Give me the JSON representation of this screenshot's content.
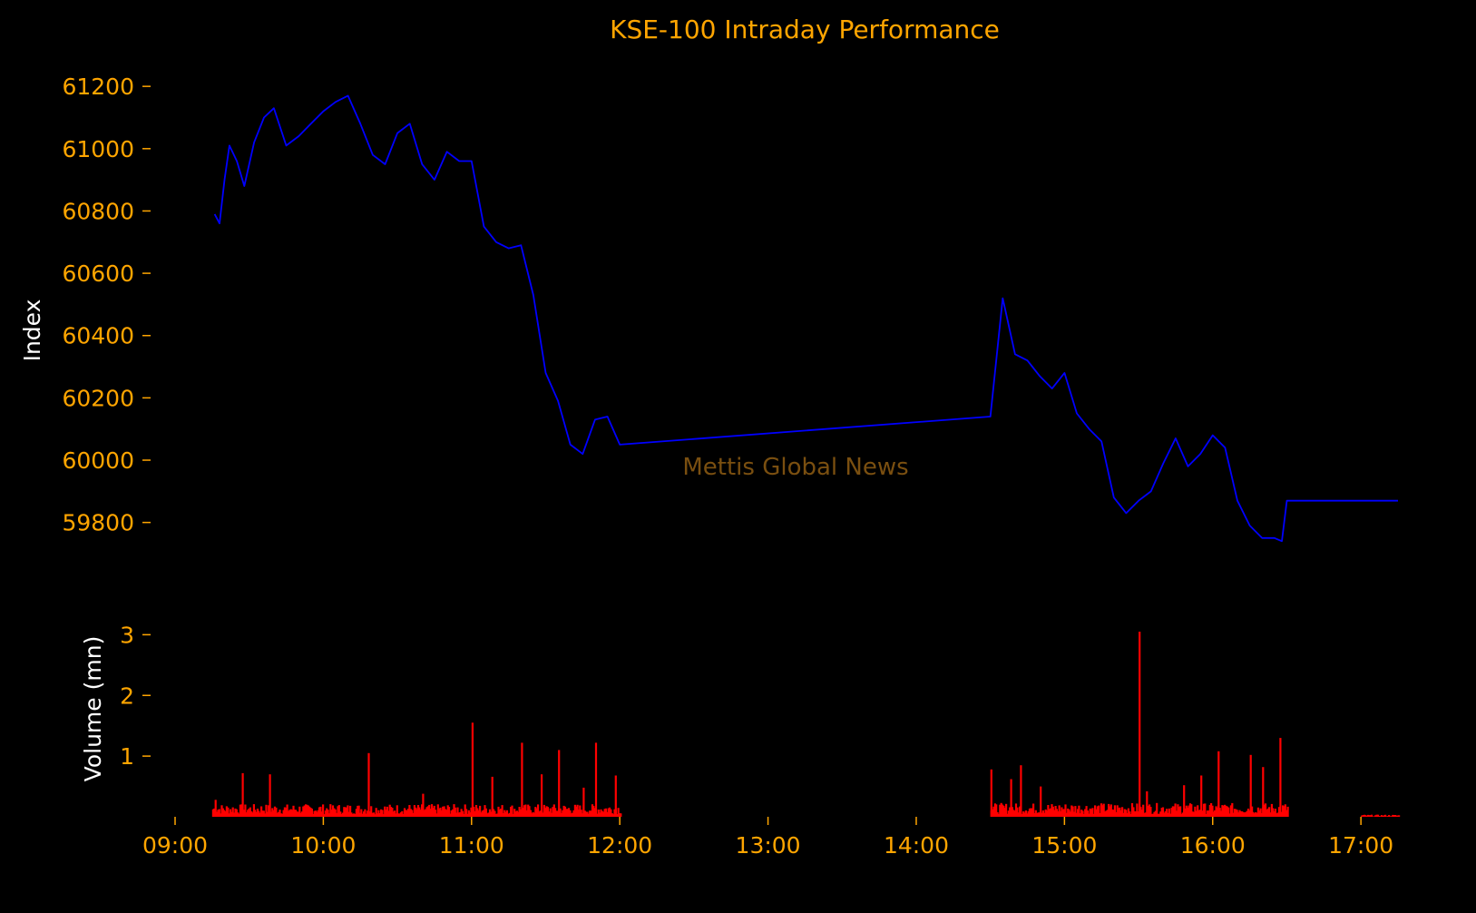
{
  "chart_data": {
    "type": "line",
    "title": "KSE-100 Intraday Performance",
    "watermark": "Mettis Global News",
    "colors": {
      "background": "#000000",
      "text": "#FFA500",
      "axis_label": "#FFFFFF",
      "price_line": "#0000FF",
      "volume_bars": "#FF0000",
      "watermark": "#7a4f10"
    },
    "x_axis": {
      "type": "time",
      "range": [
        "09:00",
        "17:15"
      ],
      "ticks": [
        "09:00",
        "10:00",
        "11:00",
        "12:00",
        "13:00",
        "14:00",
        "15:00",
        "16:00",
        "17:00"
      ]
    },
    "price_panel": {
      "ylabel": "Index",
      "ylim": [
        59700,
        61250
      ],
      "yticks": [
        "61200",
        "61000",
        "60800",
        "60600",
        "60400",
        "60200",
        "60000",
        "59800"
      ],
      "ytick_values": [
        61200,
        61000,
        60800,
        60600,
        60400,
        60200,
        60000,
        59800
      ],
      "series": [
        {
          "x": [
            "09:16",
            "09:18",
            "09:20",
            "09:22",
            "09:25",
            "09:28",
            "09:32",
            "09:36",
            "09:40",
            "09:45",
            "09:50",
            "09:55",
            "10:00",
            "10:05",
            "10:10",
            "10:15",
            "10:20",
            "10:25",
            "10:30",
            "10:35",
            "10:40",
            "10:45",
            "10:50",
            "10:55",
            "11:00",
            "11:05",
            "11:10",
            "11:15",
            "11:20",
            "11:25",
            "11:30",
            "11:35",
            "11:40",
            "11:45",
            "11:50",
            "11:55",
            "12:00",
            "14:30",
            "14:35",
            "14:40",
            "14:45",
            "14:50",
            "14:55",
            "15:00",
            "15:05",
            "15:10",
            "15:15",
            "15:20",
            "15:25",
            "15:30",
            "15:35",
            "15:40",
            "15:45",
            "15:50",
            "15:55",
            "16:00",
            "16:05",
            "16:10",
            "16:15",
            "16:20",
            "16:25",
            "16:28",
            "16:30",
            "17:15"
          ],
          "y": [
            60790,
            60760,
            60900,
            61010,
            60960,
            60880,
            61020,
            61100,
            61130,
            61010,
            61040,
            61080,
            61120,
            61150,
            61170,
            61080,
            60980,
            60950,
            61050,
            61080,
            60950,
            60900,
            60990,
            60960,
            60960,
            60750,
            60700,
            60680,
            60690,
            60530,
            60280,
            60190,
            60050,
            60020,
            60130,
            60140,
            60050,
            60140,
            60520,
            60340,
            60320,
            60270,
            60230,
            60280,
            60150,
            60100,
            60060,
            59880,
            59830,
            59870,
            59900,
            59990,
            60070,
            59980,
            60020,
            60080,
            60040,
            59870,
            59790,
            59750,
            59750,
            59740,
            59870,
            59870
          ]
        }
      ]
    },
    "volume_panel": {
      "ylabel": "Volume (mn)",
      "ylim": [
        0,
        3.2
      ],
      "yticks": [
        "3",
        "2",
        "1"
      ],
      "ytick_values": [
        3,
        2,
        1
      ],
      "spikes": [
        {
          "x": "09:16",
          "v": 0.28
        },
        {
          "x": "09:27",
          "v": 0.72
        },
        {
          "x": "09:38",
          "v": 0.7
        },
        {
          "x": "10:18",
          "v": 1.05
        },
        {
          "x": "10:40",
          "v": 0.38
        },
        {
          "x": "11:00",
          "v": 1.55
        },
        {
          "x": "11:08",
          "v": 0.66
        },
        {
          "x": "11:20",
          "v": 1.22
        },
        {
          "x": "11:28",
          "v": 0.7
        },
        {
          "x": "11:35",
          "v": 1.1
        },
        {
          "x": "11:45",
          "v": 0.48
        },
        {
          "x": "11:50",
          "v": 1.22
        },
        {
          "x": "11:58",
          "v": 0.68
        },
        {
          "x": "14:30",
          "v": 0.78
        },
        {
          "x": "14:38",
          "v": 0.62
        },
        {
          "x": "14:42",
          "v": 0.85
        },
        {
          "x": "14:50",
          "v": 0.5
        },
        {
          "x": "15:30",
          "v": 3.05
        },
        {
          "x": "15:33",
          "v": 0.42
        },
        {
          "x": "15:48",
          "v": 0.52
        },
        {
          "x": "15:55",
          "v": 0.68
        },
        {
          "x": "16:02",
          "v": 1.08
        },
        {
          "x": "16:15",
          "v": 1.02
        },
        {
          "x": "16:20",
          "v": 0.82
        },
        {
          "x": "16:27",
          "v": 1.3
        }
      ],
      "sessions": [
        {
          "start": "09:15",
          "end": "12:00",
          "base": 0.12
        },
        {
          "start": "14:30",
          "end": "16:30",
          "base": 0.13
        },
        {
          "start": "17:00",
          "end": "17:15",
          "base": 0.02
        }
      ]
    }
  }
}
